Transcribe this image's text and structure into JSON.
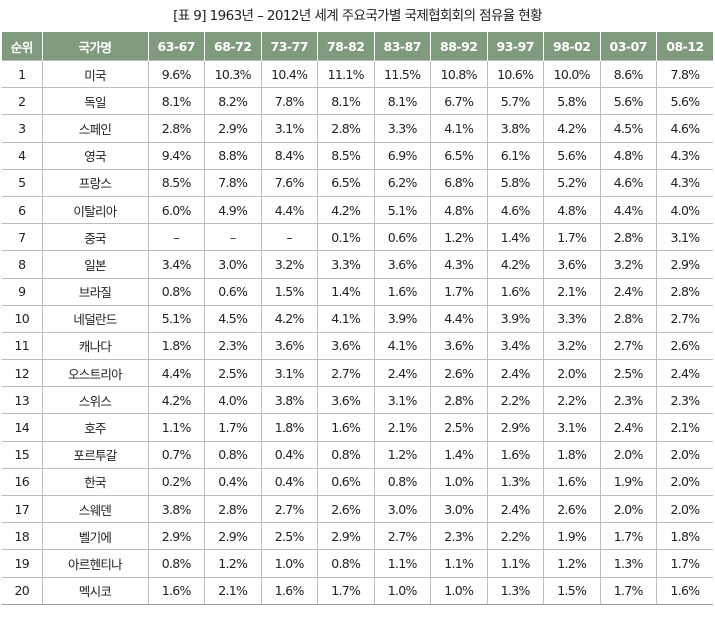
{
  "caption": "[표 9] 1963년 – 2012년 세계 주요국가별 국제협회회의 점유율 현황",
  "headers": [
    "순위",
    "국가명",
    "63-67",
    "68-72",
    "73-77",
    "78-82",
    "83-87",
    "88-92",
    "93-97",
    "98-02",
    "03-07",
    "08-12"
  ],
  "rows": [
    {
      "rank": "1",
      "country": "미국",
      "values": [
        "9.6%",
        "10.3%",
        "10.4%",
        "11.1%",
        "11.5%",
        "10.8%",
        "10.6%",
        "10.0%",
        "8.6%",
        "7.8%"
      ]
    },
    {
      "rank": "2",
      "country": "독일",
      "values": [
        "8.1%",
        "8.2%",
        "7.8%",
        "8.1%",
        "8.1%",
        "6.7%",
        "5.7%",
        "5.8%",
        "5.6%",
        "5.6%"
      ]
    },
    {
      "rank": "3",
      "country": "스페인",
      "values": [
        "2.8%",
        "2.9%",
        "3.1%",
        "2.8%",
        "3.3%",
        "4.1%",
        "3.8%",
        "4.2%",
        "4.5%",
        "4.6%"
      ]
    },
    {
      "rank": "4",
      "country": "영국",
      "values": [
        "9.4%",
        "8.8%",
        "8.4%",
        "8.5%",
        "6.9%",
        "6.5%",
        "6.1%",
        "5.6%",
        "4.8%",
        "4.3%"
      ]
    },
    {
      "rank": "5",
      "country": "프랑스",
      "values": [
        "8.5%",
        "7.8%",
        "7.6%",
        "6.5%",
        "6.2%",
        "6.8%",
        "5.8%",
        "5.2%",
        "4.6%",
        "4.3%"
      ]
    },
    {
      "rank": "6",
      "country": "이탈리아",
      "values": [
        "6.0%",
        "4.9%",
        "4.4%",
        "4.2%",
        "5.1%",
        "4.8%",
        "4.6%",
        "4.8%",
        "4.4%",
        "4.0%"
      ]
    },
    {
      "rank": "7",
      "country": "중국",
      "values": [
        "–",
        "–",
        "–",
        "0.1%",
        "0.6%",
        "1.2%",
        "1.4%",
        "1.7%",
        "2.8%",
        "3.1%"
      ]
    },
    {
      "rank": "8",
      "country": "일본",
      "values": [
        "3.4%",
        "3.0%",
        "3.2%",
        "3.3%",
        "3.6%",
        "4.3%",
        "4.2%",
        "3.6%",
        "3.2%",
        "2.9%"
      ]
    },
    {
      "rank": "9",
      "country": "브라질",
      "values": [
        "0.8%",
        "0.6%",
        "1.5%",
        "1.4%",
        "1.6%",
        "1.7%",
        "1.6%",
        "2.1%",
        "2.4%",
        "2.8%"
      ]
    },
    {
      "rank": "10",
      "country": "네덜란드",
      "values": [
        "5.1%",
        "4.5%",
        "4.2%",
        "4.1%",
        "3.9%",
        "4.4%",
        "3.9%",
        "3.3%",
        "2.8%",
        "2.7%"
      ]
    },
    {
      "rank": "11",
      "country": "캐나다",
      "values": [
        "1.8%",
        "2.3%",
        "3.6%",
        "3.6%",
        "4.1%",
        "3.6%",
        "3.4%",
        "3.2%",
        "2.7%",
        "2.6%"
      ]
    },
    {
      "rank": "12",
      "country": "오스트리아",
      "values": [
        "4.4%",
        "2.5%",
        "3.1%",
        "2.7%",
        "2.4%",
        "2.6%",
        "2.4%",
        "2.0%",
        "2.5%",
        "2.4%"
      ]
    },
    {
      "rank": "13",
      "country": "스위스",
      "values": [
        "4.2%",
        "4.0%",
        "3.8%",
        "3.6%",
        "3.1%",
        "2.8%",
        "2.2%",
        "2.2%",
        "2.3%",
        "2.3%"
      ]
    },
    {
      "rank": "14",
      "country": "호주",
      "values": [
        "1.1%",
        "1.7%",
        "1.8%",
        "1.6%",
        "2.1%",
        "2.5%",
        "2.9%",
        "3.1%",
        "2.4%",
        "2.1%"
      ]
    },
    {
      "rank": "15",
      "country": "포르투갈",
      "values": [
        "0.7%",
        "0.8%",
        "0.4%",
        "0.8%",
        "1.2%",
        "1.4%",
        "1.6%",
        "1.8%",
        "2.0%",
        "2.0%"
      ]
    },
    {
      "rank": "16",
      "country": "한국",
      "values": [
        "0.2%",
        "0.4%",
        "0.4%",
        "0.6%",
        "0.8%",
        "1.0%",
        "1.3%",
        "1.6%",
        "1.9%",
        "2.0%"
      ]
    },
    {
      "rank": "17",
      "country": "스웨덴",
      "values": [
        "3.8%",
        "2.8%",
        "2.7%",
        "2.6%",
        "3.0%",
        "3.0%",
        "2.4%",
        "2.6%",
        "2.0%",
        "2.0%"
      ]
    },
    {
      "rank": "18",
      "country": "벨기에",
      "values": [
        "2.9%",
        "2.9%",
        "2.5%",
        "2.9%",
        "2.7%",
        "2.3%",
        "2.2%",
        "1.9%",
        "1.7%",
        "1.8%"
      ]
    },
    {
      "rank": "19",
      "country": "아르헨티나",
      "values": [
        "0.8%",
        "1.2%",
        "1.0%",
        "0.8%",
        "1.1%",
        "1.1%",
        "1.1%",
        "1.2%",
        "1.3%",
        "1.7%"
      ]
    },
    {
      "rank": "20",
      "country": "멕시코",
      "values": [
        "1.6%",
        "2.1%",
        "1.6%",
        "1.7%",
        "1.0%",
        "1.0%",
        "1.3%",
        "1.5%",
        "1.7%",
        "1.6%"
      ]
    }
  ],
  "colors": {
    "header_bg": "#7f9a7d",
    "header_text": "#ffffff",
    "grid_line": "#bdbdbd"
  }
}
